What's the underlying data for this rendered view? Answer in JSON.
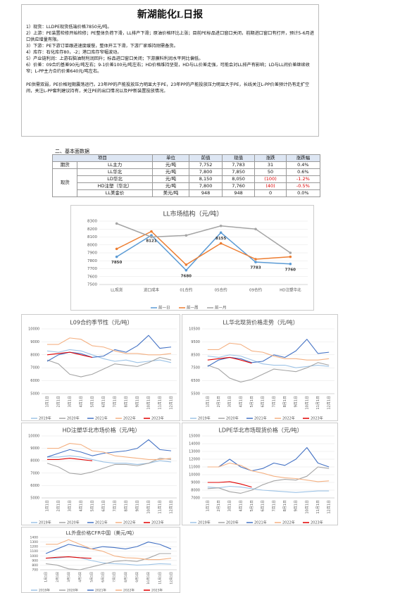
{
  "header": {
    "title": "新湖能化L日报"
  },
  "bullets": [
    "1）现货：LLDPE现货低端价格7850元/吨。",
    "2）上游：PE装置检修开始检修；PE整体负荷下滑，LL排产下滑；原油价格环比上涨；目前PE标品进口窗口关闭，前期进口窗口有打开，预计5-6月进口供应增量有限。",
    "3）下游：PE下游订单跟进速度缓慢，整体开工下滑，下游厂家维持刚需备货。",
    "4）库存：石化库存80，-2；港口库存窄幅波动。",
    "5）产业链利润：上游石脑油制利润回升；标品进口窗口关闭；下游膜料利润水平同比偏低。",
    "6）价差：09合约基差90元/吨左右；9-1价差100元/吨左右；HD价格维持坚挺，HD与LL价差走强，可能会对LL排产有影响；LD与LL间价差继续收窄；L-PP主力合约价差640元/吨左右。"
  ],
  "summary": "PE供需双弱，PE价格短期震荡运行。23年PP的产能投放压力明显大于PE，23年PP的产能投放压力明显大于PE，长线关注L-PP价差预计仍有走扩空间，关注L-PP套利建议持有，关注PE的出口情况以及PP新装置投放情况。",
  "table": {
    "caption": "二、基本面数据",
    "header": [
      "项目",
      "单位",
      "前值",
      "现值",
      "涨跌",
      "涨跌幅"
    ],
    "groups": [
      {
        "name": "期货",
        "rows": [
          [
            "LL主力",
            "元/吨",
            "7,752",
            "7,783",
            "31",
            "0.4%"
          ]
        ]
      },
      {
        "name": "现货",
        "rows": [
          [
            "LL华北",
            "元/吨",
            "7,800",
            "7,850",
            "50",
            "0.6%"
          ],
          [
            "LD华北",
            "元/吨",
            "8,150",
            "8,050",
            "(100)",
            "-1.2%"
          ],
          [
            "HD注塑（华北）",
            "元/吨",
            "7,800",
            "7,760",
            "(40)",
            "-0.5%"
          ],
          [
            "LL美金价",
            "美元/吨",
            "948",
            "948",
            "0",
            "0.0%"
          ]
        ]
      }
    ]
  },
  "chart_data": [
    {
      "type": "line",
      "title": "LL市场结构（元/吨）",
      "categories": [
        "LL现货",
        "进口成本",
        "01合约",
        "05合约",
        "09合约",
        "HD注塑华北"
      ],
      "ylim": [
        7500,
        8300
      ],
      "yticks": [
        7500,
        7600,
        7700,
        7800,
        7900,
        8000,
        8100,
        8200,
        8300
      ],
      "grid": true,
      "markers": true,
      "legend": "bottom",
      "series": [
        {
          "name": "前一日",
          "color": "#5b9bd5",
          "show_labels": true,
          "values": [
            7850,
            8121,
            7680,
            8155,
            7783,
            7760
          ]
        },
        {
          "name": "前一周",
          "color": "#ed7d31",
          "values": [
            7950,
            8170,
            7750,
            8020,
            7820,
            7850
          ]
        },
        {
          "name": "前一月",
          "color": "#a5a5a5",
          "values": [
            8270,
            8100,
            8120,
            8240,
            8200,
            7900
          ]
        }
      ]
    },
    {
      "type": "line",
      "title": "L09合约季节性（元/吨）",
      "categories": [
        "1月1日",
        "2月1日",
        "3月1日",
        "4月1日",
        "5月1日",
        "6月1日",
        "7月1日",
        "8月1日",
        "9月1日",
        "10月1日",
        "11月1日",
        "12月1日"
      ],
      "ylim": [
        5000,
        10000
      ],
      "yticks": [
        5000,
        6000,
        7000,
        8000,
        9000,
        10000
      ],
      "grid": true,
      "legend": "bottom",
      "series": [
        {
          "name": "2019年",
          "color": "#9dc3e6",
          "values": [
            8300,
            8200,
            8400,
            8300,
            8000,
            7700,
            7500,
            7600,
            7400,
            7500,
            7600,
            7400
          ]
        },
        {
          "name": "2020年",
          "color": "#a5a5a5",
          "values": [
            7600,
            7300,
            6500,
            6300,
            6500,
            6900,
            7300,
            7200,
            7100,
            7400,
            7800,
            7600
          ]
        },
        {
          "name": "2021年",
          "color": "#4472c4",
          "values": [
            7500,
            8000,
            8200,
            8100,
            7800,
            7900,
            8400,
            8200,
            8700,
            9500,
            8500,
            8600
          ]
        },
        {
          "name": "2022年",
          "color": "#f4b183",
          "values": [
            8800,
            8800,
            9300,
            9200,
            8700,
            8600,
            8300,
            8100,
            8100,
            8000,
            8000,
            8100
          ]
        },
        {
          "name": "2023年",
          "color": "#e00000",
          "values": [
            8000,
            8100,
            8200,
            8000,
            7800,
            null,
            null,
            null,
            null,
            null,
            null,
            null
          ]
        }
      ]
    },
    {
      "type": "line",
      "title": "LL华北现货价格走势（元/吨）",
      "categories": [
        "1月1日",
        "2月1日",
        "3月1日",
        "4月1日",
        "5月1日",
        "6月1日",
        "7月1日",
        "8月1日",
        "9月1日",
        "10月1日",
        "11月1日",
        "12月1日"
      ],
      "ylim": [
        5500,
        10500
      ],
      "yticks": [
        5500,
        6500,
        7500,
        8500,
        9500,
        10500
      ],
      "grid": true,
      "legend": "bottom",
      "series": [
        {
          "name": "2019年",
          "color": "#9dc3e6",
          "values": [
            8400,
            8300,
            8500,
            8400,
            8100,
            7800,
            7700,
            7700,
            7500,
            7600,
            7700,
            7600
          ]
        },
        {
          "name": "2020年",
          "color": "#a5a5a5",
          "values": [
            7700,
            7400,
            6700,
            6400,
            6600,
            7000,
            7400,
            7300,
            7200,
            7500,
            7900,
            7700
          ]
        },
        {
          "name": "2021年",
          "color": "#4472c4",
          "values": [
            7600,
            8100,
            8300,
            8200,
            7900,
            8000,
            8500,
            8300,
            8800,
            9700,
            8600,
            8700
          ]
        },
        {
          "name": "2022年",
          "color": "#f4b183",
          "values": [
            8900,
            8900,
            9400,
            9300,
            8800,
            8700,
            8400,
            8200,
            8200,
            8100,
            8100,
            8200
          ]
        },
        {
          "name": "2023年",
          "color": "#e00000",
          "values": [
            8100,
            8200,
            8300,
            8100,
            7850,
            null,
            null,
            null,
            null,
            null,
            null,
            null
          ]
        }
      ]
    },
    {
      "type": "line",
      "title": "HD注塑华北市场价格（元/吨）",
      "categories": [
        "1月1日",
        "2月1日",
        "3月1日",
        "4月1日",
        "5月1日",
        "6月1日",
        "7月1日",
        "8月1日",
        "9月1日",
        "10月1日",
        "11月1日",
        "12月1日"
      ],
      "ylim": [
        5000,
        10000
      ],
      "yticks": [
        5000,
        6000,
        7000,
        8000,
        9000,
        10000
      ],
      "grid": true,
      "legend": "bottom",
      "series": [
        {
          "name": "2019年",
          "color": "#9dc3e6",
          "values": [
            8300,
            8300,
            8400,
            8300,
            8100,
            7900,
            7800,
            7800,
            7700,
            7800,
            8000,
            7900
          ]
        },
        {
          "name": "2020年",
          "color": "#a5a5a5",
          "values": [
            7800,
            7500,
            7000,
            6900,
            7100,
            7400,
            7700,
            7700,
            7600,
            7800,
            8200,
            8100
          ]
        },
        {
          "name": "2021年",
          "color": "#4472c4",
          "values": [
            8300,
            8600,
            8900,
            8700,
            8400,
            8600,
            8700,
            8800,
            9000,
            9700,
            8900,
            8800
          ]
        },
        {
          "name": "2022年",
          "color": "#f4b183",
          "values": [
            9000,
            9000,
            9400,
            9300,
            8800,
            8700,
            8400,
            8300,
            8200,
            8100,
            8100,
            8200
          ]
        },
        {
          "name": "2023年",
          "color": "#e00000",
          "values": [
            8100,
            8100,
            8200,
            8100,
            8000,
            null,
            null,
            null,
            null,
            null,
            null,
            null
          ]
        }
      ]
    },
    {
      "type": "line",
      "title": "LDPE华北市场现货价格（元/吨）",
      "categories": [
        "1月1日",
        "2月1日",
        "3月1日",
        "4月1日",
        "5月1日",
        "6月1日",
        "7月1日",
        "8月1日",
        "9月1日",
        "10月1日",
        "11月1日",
        "12月1日"
      ],
      "ylim": [
        7000,
        15000
      ],
      "yticks": [
        7000,
        8000,
        9000,
        10000,
        11000,
        12000,
        13000,
        14000,
        15000
      ],
      "grid": true,
      "legend": "bottom",
      "series": [
        {
          "name": "2019年",
          "color": "#9dc3e6",
          "values": [
            8400,
            8300,
            8500,
            8400,
            8200,
            8000,
            7900,
            7800,
            7700,
            7800,
            7900,
            7900
          ]
        },
        {
          "name": "2020年",
          "color": "#a5a5a5",
          "values": [
            8200,
            8300,
            7800,
            7600,
            8000,
            8700,
            9200,
            9400,
            9300,
            9800,
            11000,
            10800
          ]
        },
        {
          "name": "2021年",
          "color": "#4472c4",
          "values": [
            11000,
            11000,
            12000,
            11000,
            10500,
            10800,
            11500,
            11200,
            12000,
            13500,
            11500,
            11000
          ]
        },
        {
          "name": "2022年",
          "color": "#f4b183",
          "values": [
            11000,
            11000,
            11500,
            11200,
            10500,
            10200,
            9800,
            9600,
            9500,
            9300,
            9100,
            9200
          ]
        },
        {
          "name": "2023年",
          "color": "#e00000",
          "values": [
            9000,
            9000,
            9100,
            8800,
            8400,
            null,
            null,
            null,
            null,
            null,
            null,
            null
          ]
        }
      ]
    },
    {
      "type": "line",
      "title": "LL外盘价格CFR中国（美元/吨）",
      "categories": [
        "1月1日",
        "2月1日",
        "3月1日",
        "4月1日",
        "5月1日",
        "6月1日",
        "7月1日",
        "8月1日",
        "9月1日",
        "10月1日",
        "11月1日",
        "12月1日"
      ],
      "ylim": [
        700,
        1400
      ],
      "yticks": [
        700,
        800,
        900,
        1000,
        1100,
        1200,
        1300,
        1400
      ],
      "grid": true,
      "legend": "bottom",
      "series": [
        {
          "name": "2019年",
          "color": "#9dc3e6",
          "values": [
            950,
            950,
            980,
            960,
            900,
            850,
            830,
            820,
            800,
            810,
            830,
            820
          ]
        },
        {
          "name": "2020年",
          "color": "#a5a5a5",
          "values": [
            830,
            800,
            720,
            700,
            760,
            820,
            880,
            900,
            880,
            950,
            1050,
            1050
          ]
        },
        {
          "name": "2021年",
          "color": "#4472c4",
          "values": [
            1050,
            1150,
            1250,
            1200,
            1150,
            1200,
            1180,
            1150,
            1200,
            1300,
            1250,
            1150
          ]
        },
        {
          "name": "2022年",
          "color": "#f4b183",
          "values": [
            1250,
            1250,
            1350,
            1250,
            1150,
            1100,
            1000,
            960,
            950,
            920,
            920,
            950
          ]
        },
        {
          "name": "2023年",
          "color": "#e00000",
          "values": [
            950,
            970,
            980,
            960,
            948,
            null,
            null,
            null,
            null,
            null,
            null,
            null
          ]
        }
      ]
    }
  ]
}
